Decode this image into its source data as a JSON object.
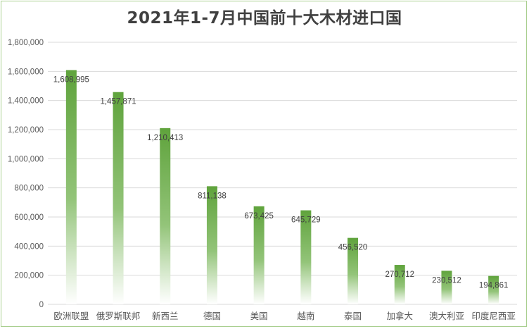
{
  "chart_data": {
    "type": "bar",
    "title": "2021年1-7月中国前十大木材进口国",
    "xlabel": "",
    "ylabel": "",
    "ylim": [
      0,
      1800000
    ],
    "y_ticks": [
      "0",
      "200,000",
      "400,000",
      "600,000",
      "800,000",
      "1,000,000",
      "1,200,000",
      "1,400,000",
      "1,600,000",
      "1,800,000"
    ],
    "grid": true,
    "legend": "none",
    "categories": [
      "欧洲联盟",
      "俄罗斯联邦",
      "新西兰",
      "德国",
      "美国",
      "越南",
      "泰国",
      "加拿大",
      "澳大利亚",
      "印度尼西亚"
    ],
    "values": [
      1608995,
      1457871,
      1210413,
      811138,
      673425,
      645729,
      456520,
      270712,
      230512,
      194861
    ],
    "data_labels": [
      "1,608,995",
      "1,457,871",
      "1,210,413",
      "811,138",
      "673,425",
      "645,729",
      "456,520",
      "270,712",
      "230,512",
      "194,861"
    ],
    "bar_color": "#6aa94a"
  }
}
